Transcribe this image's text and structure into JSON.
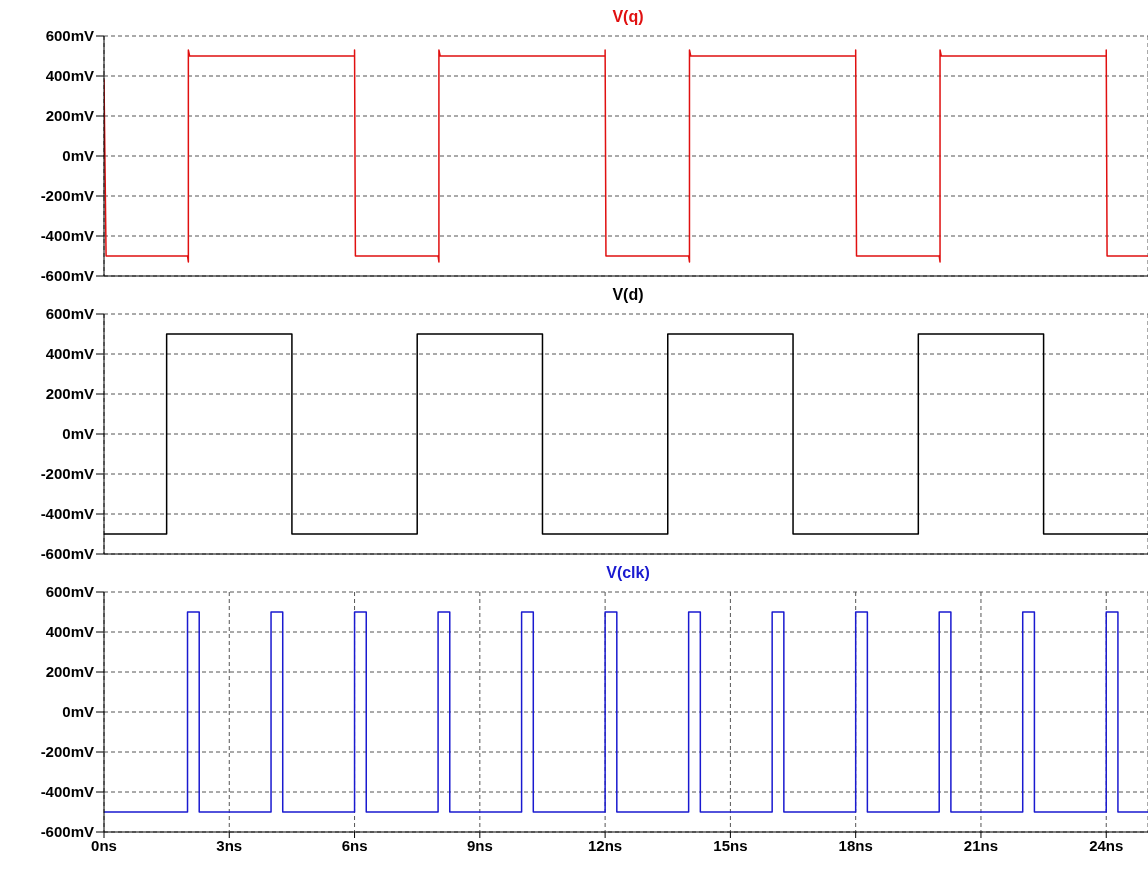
{
  "chart_data": [
    {
      "type": "line",
      "title": "V(q)",
      "tick_labels": "y",
      "grid": true,
      "line_style": "solid",
      "xlim": [
        0,
        25
      ],
      "ylim": [
        -600,
        600
      ],
      "xticks": [
        {
          "value": 0,
          "label": null
        },
        {
          "value": 3,
          "label": null
        },
        {
          "value": 6,
          "label": null
        },
        {
          "value": 9,
          "label": null
        },
        {
          "value": 12,
          "label": null
        },
        {
          "value": 15,
          "label": null
        },
        {
          "value": 18,
          "label": null
        },
        {
          "value": 21,
          "label": null
        },
        {
          "value": 24,
          "label": null
        }
      ],
      "yticks": [
        {
          "value": -600,
          "label": "-600mV"
        },
        {
          "value": -400,
          "label": "-400mV"
        },
        {
          "value": -200,
          "label": "-200mV"
        },
        {
          "value": 0,
          "label": "0mV"
        },
        {
          "value": 200,
          "label": "200mV"
        },
        {
          "value": 400,
          "label": "400mV"
        },
        {
          "value": 600,
          "label": "600mV"
        }
      ],
      "series": [
        {
          "color": "#e01010",
          "x": [
            0,
            0,
            0.05,
            2.0,
            2.02,
            2.02,
            2.05,
            6.0,
            6.0,
            6.02,
            8.0,
            8.02,
            8.02,
            8.05,
            12.0,
            12.0,
            12.02,
            14.0,
            14.02,
            14.02,
            14.05,
            18.0,
            18.0,
            18.02,
            20.0,
            20.02,
            20.02,
            20.05,
            24.0,
            24.0,
            24.02,
            25
          ],
          "values": [
            0,
            380,
            -500,
            -500,
            -530,
            530,
            500,
            500,
            530,
            -500,
            -500,
            -530,
            530,
            500,
            500,
            530,
            -500,
            -500,
            -530,
            530,
            500,
            500,
            530,
            -500,
            -500,
            -530,
            530,
            500,
            500,
            530,
            -500,
            -500
          ]
        }
      ]
    },
    {
      "type": "line",
      "title": "V(d)",
      "tick_labels": "y",
      "grid": true,
      "line_style": "solid",
      "xlim": [
        0,
        25
      ],
      "ylim": [
        -600,
        600
      ],
      "xticks": [
        {
          "value": 0,
          "label": null
        },
        {
          "value": 3,
          "label": null
        },
        {
          "value": 6,
          "label": null
        },
        {
          "value": 9,
          "label": null
        },
        {
          "value": 12,
          "label": null
        },
        {
          "value": 15,
          "label": null
        },
        {
          "value": 18,
          "label": null
        },
        {
          "value": 21,
          "label": null
        },
        {
          "value": 24,
          "label": null
        }
      ],
      "yticks": [
        {
          "value": -600,
          "label": "-600mV"
        },
        {
          "value": -400,
          "label": "-400mV"
        },
        {
          "value": -200,
          "label": "-200mV"
        },
        {
          "value": 0,
          "label": "0mV"
        },
        {
          "value": 200,
          "label": "200mV"
        },
        {
          "value": 400,
          "label": "400mV"
        },
        {
          "value": 600,
          "label": "600mV"
        }
      ],
      "series": [
        {
          "color": "#000000",
          "x": [
            0,
            1.5,
            1.5,
            4.5,
            4.5,
            7.5,
            7.5,
            10.5,
            10.5,
            13.5,
            13.5,
            16.5,
            16.5,
            19.5,
            19.5,
            22.5,
            22.5,
            25
          ],
          "values": [
            -500,
            -500,
            500,
            500,
            -500,
            -500,
            500,
            500,
            -500,
            -500,
            500,
            500,
            -500,
            -500,
            500,
            500,
            -500,
            -500
          ]
        }
      ]
    },
    {
      "type": "line",
      "title": "V(clk)",
      "grid": true,
      "line_style": "solid",
      "xlim": [
        0,
        25
      ],
      "ylim": [
        -600,
        600
      ],
      "xticks": [
        {
          "value": 0,
          "label": "0ns"
        },
        {
          "value": 3,
          "label": "3ns"
        },
        {
          "value": 6,
          "label": "6ns"
        },
        {
          "value": 9,
          "label": "9ns"
        },
        {
          "value": 12,
          "label": "12ns"
        },
        {
          "value": 15,
          "label": "15ns"
        },
        {
          "value": 18,
          "label": "18ns"
        },
        {
          "value": 21,
          "label": "21ns"
        },
        {
          "value": 24,
          "label": "24ns"
        }
      ],
      "yticks": [
        {
          "value": -600,
          "label": "-600mV"
        },
        {
          "value": -400,
          "label": "-400mV"
        },
        {
          "value": -200,
          "label": "-200mV"
        },
        {
          "value": 0,
          "label": "0mV"
        },
        {
          "value": 200,
          "label": "200mV"
        },
        {
          "value": 400,
          "label": "400mV"
        },
        {
          "value": 600,
          "label": "600mV"
        }
      ],
      "series": [
        {
          "color": "#1a1ad0",
          "x": [
            0,
            2,
            2,
            2.28,
            2.28,
            4,
            4,
            4.28,
            4.28,
            6,
            6,
            6.28,
            6.28,
            8,
            8,
            8.28,
            8.28,
            10,
            10,
            10.28,
            10.28,
            12,
            12,
            12.28,
            12.28,
            14,
            14,
            14.28,
            14.28,
            16,
            16,
            16.28,
            16.28,
            18,
            18,
            18.28,
            18.28,
            20,
            20,
            20.28,
            20.28,
            22,
            22,
            22.28,
            22.28,
            24,
            24,
            24.28,
            24.28,
            25
          ],
          "values": [
            -500,
            -500,
            500,
            500,
            -500,
            -500,
            500,
            500,
            -500,
            -500,
            500,
            500,
            -500,
            -500,
            500,
            500,
            -500,
            -500,
            500,
            500,
            -500,
            -500,
            500,
            500,
            -500,
            -500,
            500,
            500,
            -500,
            -500,
            500,
            500,
            -500,
            -500,
            500,
            500,
            -500,
            -500,
            500,
            500,
            -500,
            -500,
            500,
            500,
            -500,
            -500,
            500,
            500,
            -500,
            -500
          ]
        }
      ]
    }
  ]
}
